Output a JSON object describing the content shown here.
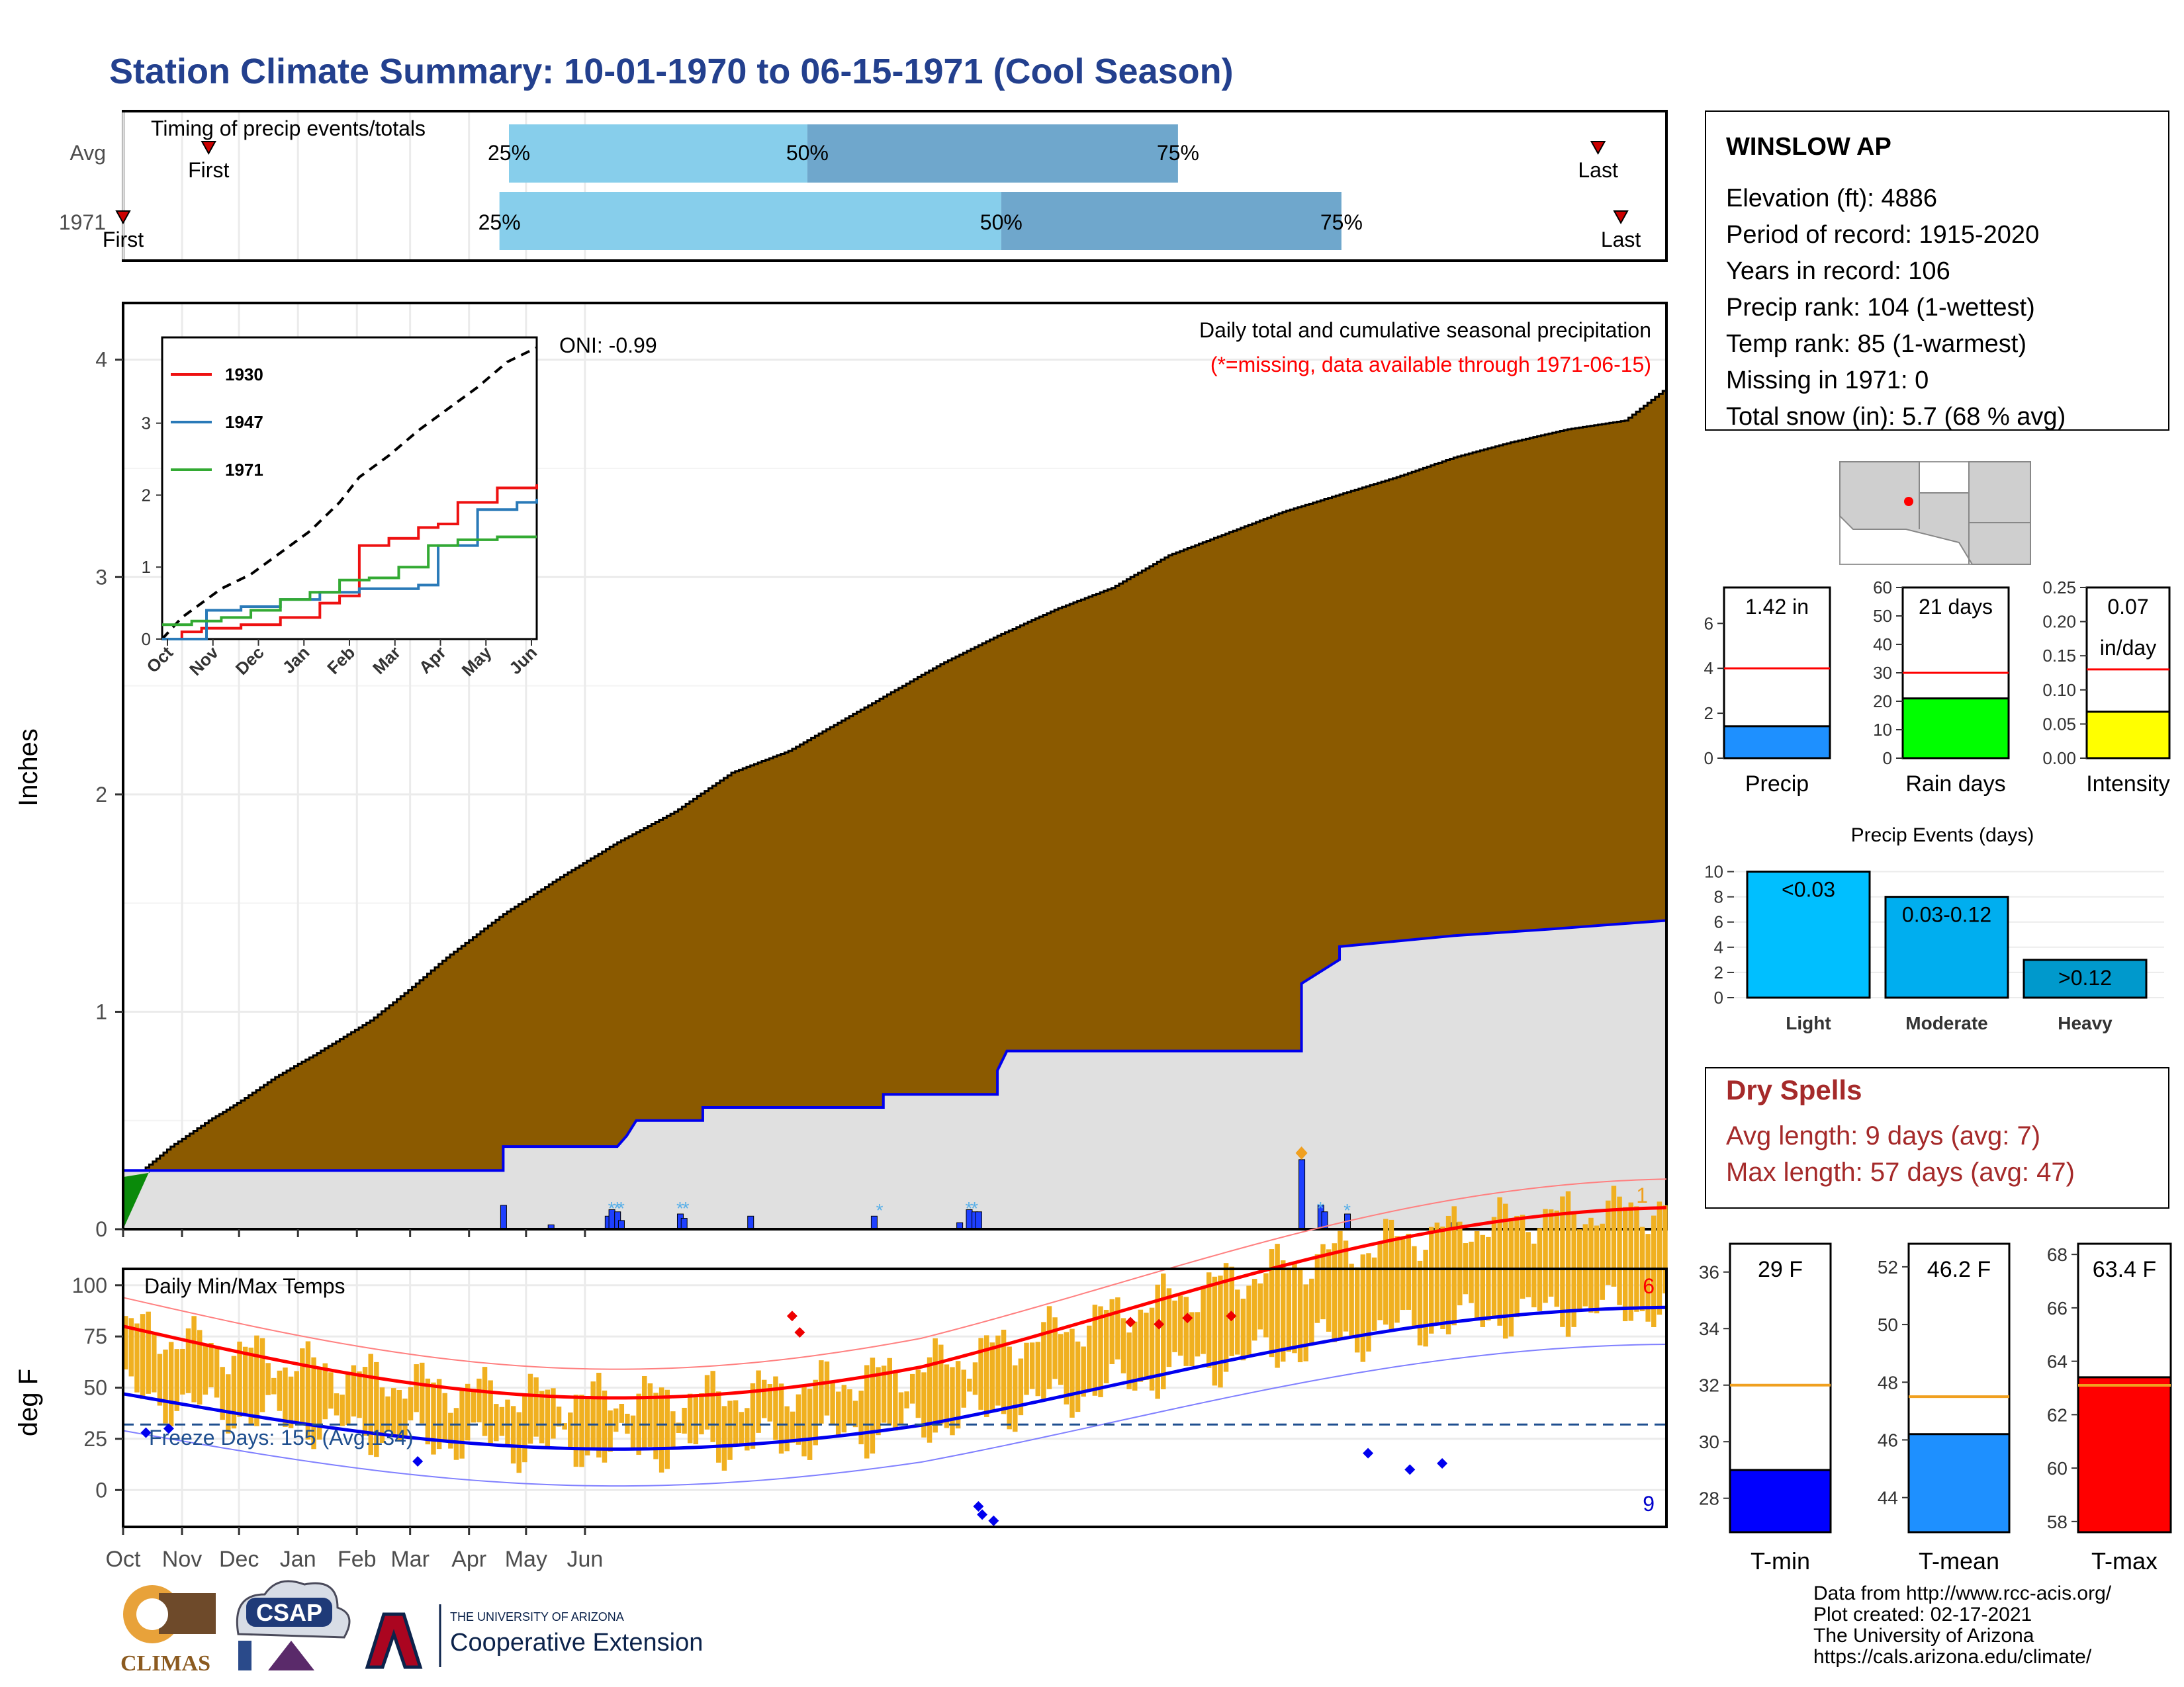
{
  "title": "Station Climate Summary: 10-01-1970 to 06-15-1971 (Cool Season)",
  "colors": {
    "title": "#23408e",
    "brown": "#8b5a00",
    "gray_fill": "#e0e0e0",
    "blue": "#0000ee",
    "green": "#0a8a0a",
    "orange": "#f0b020",
    "red": "#ff0000",
    "light_blue": "#87ceeb",
    "mid_blue": "#6fa7cc",
    "dry_red": "#a52a2a"
  },
  "month_labels": [
    "Oct",
    "Nov",
    "Dec",
    "Jan",
    "Feb",
    "Mar",
    "Apr",
    "May",
    "Jun"
  ],
  "timing": {
    "title": "Timing of precip events/totals",
    "rows": [
      {
        "label": "Avg",
        "first_label": "First",
        "last_label": "Last",
        "first_day": 45,
        "p25_day": 203,
        "p50_day": 360,
        "p75_day": 555,
        "last_day": 776
      },
      {
        "label": "1971",
        "first_label": "First",
        "last_label": "Last",
        "first_day": 0,
        "p25_day": 198,
        "p50_day": 462,
        "p75_day": 641,
        "last_day": 788
      }
    ],
    "p_labels": [
      "25%",
      "50%",
      "75%"
    ]
  },
  "main_chart": {
    "ylabel": "Inches",
    "y_ticks": [
      "0",
      "1",
      "2",
      "3",
      "4"
    ],
    "heading": "Daily total and cumulative seasonal precipitation",
    "note": "(*=missing, data available through 1971-06-15)",
    "oni": "ONI: -0.99",
    "corner_count": "1",
    "chart_data": {
      "type": "area",
      "x_unit": "day of season (Oct 1 = 0)",
      "avg_cumulative": [
        [
          0,
          0.27
        ],
        [
          10,
          0.27
        ],
        [
          25,
          0.38
        ],
        [
          45,
          0.5
        ],
        [
          60,
          0.58
        ],
        [
          80,
          0.7
        ],
        [
          100,
          0.8
        ],
        [
          130,
          0.96
        ],
        [
          150,
          1.1
        ],
        [
          170,
          1.25
        ],
        [
          200,
          1.45
        ],
        [
          230,
          1.62
        ],
        [
          260,
          1.78
        ],
        [
          290,
          1.92
        ],
        [
          320,
          2.1
        ],
        [
          350,
          2.2
        ],
        [
          370,
          2.3
        ],
        [
          400,
          2.45
        ],
        [
          430,
          2.6
        ],
        [
          460,
          2.73
        ],
        [
          490,
          2.85
        ],
        [
          520,
          2.95
        ],
        [
          550,
          3.1
        ],
        [
          580,
          3.2
        ],
        [
          610,
          3.3
        ],
        [
          640,
          3.38
        ],
        [
          670,
          3.46
        ],
        [
          700,
          3.55
        ],
        [
          730,
          3.62
        ],
        [
          760,
          3.68
        ],
        [
          790,
          3.72
        ],
        [
          812,
          3.87
        ]
      ],
      "obs_cumulative_1971": [
        [
          0,
          0.27
        ],
        [
          200,
          0.27
        ],
        [
          200,
          0.38
        ],
        [
          260,
          0.38
        ],
        [
          265,
          0.43
        ],
        [
          270,
          0.5
        ],
        [
          305,
          0.5
        ],
        [
          305,
          0.56
        ],
        [
          400,
          0.56
        ],
        [
          400,
          0.62
        ],
        [
          460,
          0.62
        ],
        [
          460,
          0.73
        ],
        [
          465,
          0.82
        ],
        [
          620,
          0.82
        ],
        [
          620,
          1.13
        ],
        [
          640,
          1.24
        ],
        [
          640,
          1.3
        ],
        [
          700,
          1.35
        ],
        [
          750,
          1.38
        ],
        [
          812,
          1.42
        ]
      ],
      "daily_bars": [
        [
          200,
          0.11
        ],
        [
          225,
          0.02
        ],
        [
          255,
          0.06
        ],
        [
          257,
          0.09
        ],
        [
          260,
          0.08
        ],
        [
          262,
          0.04
        ],
        [
          293,
          0.07
        ],
        [
          295,
          0.05
        ],
        [
          330,
          0.06
        ],
        [
          395,
          0.06
        ],
        [
          440,
          0.03
        ],
        [
          445,
          0.09
        ],
        [
          448,
          0.08
        ],
        [
          450,
          0.08
        ],
        [
          620,
          0.32
        ],
        [
          630,
          0.11
        ],
        [
          632,
          0.08
        ],
        [
          644,
          0.07
        ],
        [
          700,
          0.03
        ]
      ],
      "ylim": [
        0,
        4.2
      ]
    }
  },
  "inset": {
    "series": [
      {
        "name": "1930",
        "color": "#ee1111"
      },
      {
        "name": "1947",
        "color": "#2a7ab8"
      },
      {
        "name": "1971",
        "color": "#33aa33"
      }
    ],
    "y_ticks": [
      "0",
      "1",
      "2",
      "3"
    ],
    "month_labels": [
      "Oct",
      "Nov",
      "Dec",
      "Jan",
      "Feb",
      "Mar",
      "Apr",
      "May",
      "Jun"
    ],
    "chart_data": {
      "type": "line",
      "avg": [
        [
          0,
          0
        ],
        [
          20,
          0.3
        ],
        [
          60,
          0.7
        ],
        [
          90,
          0.9
        ],
        [
          120,
          1.2
        ],
        [
          150,
          1.5
        ],
        [
          180,
          1.9
        ],
        [
          200,
          2.25
        ],
        [
          230,
          2.55
        ],
        [
          260,
          2.9
        ],
        [
          290,
          3.2
        ],
        [
          320,
          3.5
        ],
        [
          350,
          3.85
        ],
        [
          380,
          4.05
        ]
      ],
      "s1930": [
        [
          0,
          0
        ],
        [
          20,
          0.1
        ],
        [
          40,
          0.15
        ],
        [
          80,
          0.2
        ],
        [
          120,
          0.3
        ],
        [
          160,
          0.5
        ],
        [
          180,
          0.6
        ],
        [
          200,
          1.3
        ],
        [
          230,
          1.4
        ],
        [
          260,
          1.55
        ],
        [
          280,
          1.6
        ],
        [
          300,
          1.9
        ],
        [
          340,
          2.1
        ],
        [
          380,
          2.15
        ]
      ],
      "s1947": [
        [
          0,
          0
        ],
        [
          40,
          0
        ],
        [
          45,
          0.4
        ],
        [
          80,
          0.45
        ],
        [
          120,
          0.55
        ],
        [
          160,
          0.65
        ],
        [
          200,
          0.7
        ],
        [
          240,
          0.7
        ],
        [
          260,
          0.75
        ],
        [
          280,
          1.3
        ],
        [
          320,
          1.8
        ],
        [
          360,
          1.9
        ],
        [
          380,
          1.95
        ]
      ],
      "s1971": [
        [
          0,
          0.2
        ],
        [
          30,
          0.25
        ],
        [
          60,
          0.3
        ],
        [
          90,
          0.4
        ],
        [
          120,
          0.55
        ],
        [
          150,
          0.65
        ],
        [
          180,
          0.82
        ],
        [
          210,
          0.85
        ],
        [
          240,
          1.0
        ],
        [
          270,
          1.3
        ],
        [
          300,
          1.38
        ],
        [
          340,
          1.42
        ],
        [
          380,
          1.42
        ]
      ]
    }
  },
  "temp_chart": {
    "ylabel": "deg F",
    "heading": "Daily Min/Max Temps",
    "freeze": "Freeze Days: 155 (Avg:134)",
    "count_top": "6",
    "count_bottom": "9",
    "y_ticks": [
      "0",
      "25",
      "50",
      "75",
      "100"
    ]
  },
  "station": {
    "name": "WINSLOW AP",
    "lines": [
      "Elevation (ft): 4886",
      "Period of record: 1915-2020",
      "Years in record: 106",
      "Precip rank: 104 (1-wettest)",
      "Temp rank: 85 (1-warmest)",
      "Missing in 1971: 0",
      "Total snow (in): 5.7 (68 % avg)"
    ]
  },
  "mini_bars": [
    {
      "label": "Precip",
      "value_label": "1.42 in",
      "value": 1.42,
      "avg": 4.0,
      "ymax": 7.6,
      "ticks": [
        "0",
        "2",
        "4",
        "6"
      ],
      "tick_vals": [
        0,
        2,
        4,
        6
      ],
      "color": "#1e90ff"
    },
    {
      "label": "Rain days",
      "value_label": "21 days",
      "value": 21,
      "avg": 30,
      "ymax": 60,
      "ticks": [
        "0",
        "10",
        "20",
        "30",
        "40",
        "50",
        "60"
      ],
      "tick_vals": [
        0,
        10,
        20,
        30,
        40,
        50,
        60
      ],
      "color": "#00ff00"
    },
    {
      "label": "Intensity",
      "value_label": "0.07",
      "value_label2": "in/day",
      "value": 0.068,
      "avg": 0.13,
      "ymax": 0.25,
      "ticks": [
        "0.00",
        "0.05",
        "0.10",
        "0.15",
        "0.20",
        "0.25"
      ],
      "tick_vals": [
        0,
        0.05,
        0.1,
        0.15,
        0.2,
        0.25
      ],
      "color": "#ffff00"
    }
  ],
  "events": {
    "title": "Precip Events (days)",
    "chart_data": {
      "type": "bar",
      "categories": [
        "Light",
        "Moderate",
        "Heavy"
      ],
      "bar_labels": [
        "<0.03",
        "0.03-0.12",
        ">0.12"
      ],
      "values": [
        10,
        8,
        3
      ],
      "ylim": [
        0,
        10.5
      ],
      "ticks": [
        "0",
        "2",
        "4",
        "6",
        "8",
        "10"
      ]
    }
  },
  "dry_spells": {
    "title": "Dry Spells",
    "avg": "Avg length: 9 days (avg: 7)",
    "max": "Max length: 57 days (avg: 47)"
  },
  "temp_bars": [
    {
      "label": "T-min",
      "value_label": "29 F",
      "value": 29,
      "avg": 32,
      "ymin": 26.8,
      "ymax": 37,
      "ticks": [
        "28",
        "30",
        "32",
        "34",
        "36"
      ],
      "tick_vals": [
        28,
        30,
        32,
        34,
        36
      ],
      "color": "#0000ff"
    },
    {
      "label": "T-mean",
      "value_label": "46.2 F",
      "value": 46.2,
      "avg": 47.5,
      "ymin": 42.8,
      "ymax": 52.8,
      "ticks": [
        "44",
        "46",
        "48",
        "50",
        "52"
      ],
      "tick_vals": [
        44,
        46,
        48,
        50,
        52
      ],
      "color": "#1e90ff"
    },
    {
      "label": "T-max",
      "value_label": "63.4 F",
      "value": 63.4,
      "avg": 63.1,
      "ymin": 57.6,
      "ymax": 68.4,
      "ticks": [
        "58",
        "60",
        "62",
        "64",
        "66",
        "68"
      ],
      "tick_vals": [
        58,
        60,
        62,
        64,
        66,
        68
      ],
      "color": "#ff0000"
    }
  ],
  "footer": {
    "lines": [
      "Data from http://www.rcc-acis.org/",
      "Plot created: 02-17-2021",
      "The University of Arizona",
      "https://cals.arizona.edu/climate/"
    ],
    "logo_climas": "CLIMAS",
    "logo_csap": "CSAP",
    "ua_small": "THE UNIVERSITY OF ARIZONA",
    "ua_big": "Cooperative Extension"
  }
}
